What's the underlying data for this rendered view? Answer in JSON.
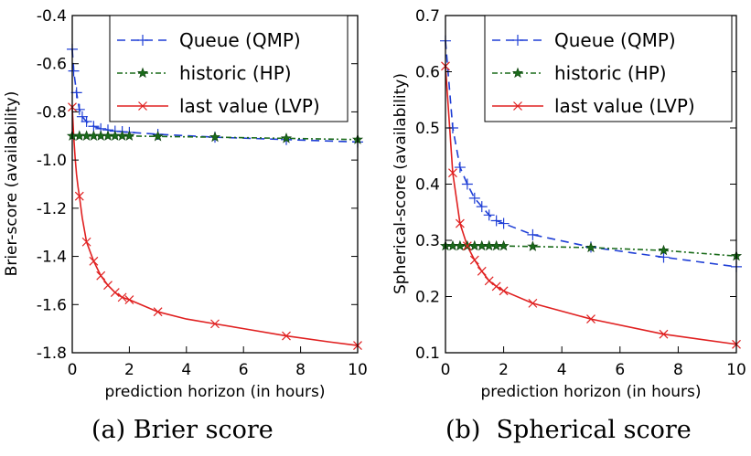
{
  "chart_data": [
    {
      "type": "line",
      "title": "",
      "caption": "(a) Brier score",
      "xlabel": "prediction horizon (in hours)",
      "ylabel": "Brier-score (availability)",
      "xlim": [
        0,
        10
      ],
      "ylim": [
        -1.8,
        -0.4
      ],
      "xticks": [
        "0",
        "2",
        "4",
        "6",
        "8",
        "10"
      ],
      "yticks": [
        "-0.4",
        "-0.6",
        "-0.8",
        "-1.0",
        "-1.2",
        "-1.4",
        "-1.6",
        "-1.8"
      ],
      "legend_position": "top-right",
      "series": [
        {
          "name": "Queue (QMP)",
          "color": "#1f3fd6",
          "style": "dashed",
          "marker": "+",
          "x": [
            0,
            0.05,
            0.15,
            0.25,
            0.35,
            0.5,
            0.75,
            1.0,
            1.25,
            1.5,
            1.75,
            2.0,
            3.0,
            5.0,
            7.5,
            10.0
          ],
          "y": [
            -0.54,
            -0.63,
            -0.72,
            -0.79,
            -0.82,
            -0.84,
            -0.86,
            -0.87,
            -0.875,
            -0.88,
            -0.882,
            -0.885,
            -0.893,
            -0.905,
            -0.915,
            -0.925
          ]
        },
        {
          "name": "historic (HP)",
          "color": "#1a6b1a",
          "style": "dashdot",
          "marker": "*",
          "x": [
            0,
            0.25,
            0.5,
            0.75,
            1.0,
            1.25,
            1.5,
            1.75,
            2.0,
            3.0,
            5.0,
            7.5,
            10.0
          ],
          "y": [
            -0.9,
            -0.9,
            -0.9,
            -0.9,
            -0.9,
            -0.9,
            -0.9,
            -0.9,
            -0.9,
            -0.902,
            -0.905,
            -0.91,
            -0.915
          ]
        },
        {
          "name": "last value (LVP)",
          "color": "#e02020",
          "style": "solid",
          "marker": "x",
          "x": [
            0,
            0.25,
            0.5,
            0.75,
            1.0,
            1.25,
            1.5,
            1.75,
            2.0,
            3.0,
            5.0,
            7.5,
            10.0
          ],
          "y": [
            -0.78,
            -1.15,
            -1.34,
            -1.42,
            -1.48,
            -1.52,
            -1.55,
            -1.57,
            -1.58,
            -1.63,
            -1.68,
            -1.73,
            -1.77
          ],
          "curve_x": [
            0,
            0.05,
            0.1,
            0.15,
            0.2,
            0.25,
            0.35,
            0.5,
            0.75,
            1.0,
            1.25,
            1.5,
            1.75,
            2.0,
            2.5,
            3.0,
            4.0,
            5.0,
            6.0,
            7.5,
            9.0,
            10.0
          ],
          "curve_y": [
            -0.78,
            -0.9,
            -0.99,
            -1.06,
            -1.11,
            -1.15,
            -1.24,
            -1.34,
            -1.42,
            -1.48,
            -1.52,
            -1.55,
            -1.57,
            -1.58,
            -1.605,
            -1.63,
            -1.66,
            -1.68,
            -1.7,
            -1.73,
            -1.755,
            -1.77
          ]
        }
      ]
    },
    {
      "type": "line",
      "title": "",
      "caption": "(b)  Spherical score",
      "xlabel": "prediction horizon (in hours)",
      "ylabel": "Spherical-score (availability)",
      "xlim": [
        0,
        10
      ],
      "ylim": [
        0.1,
        0.7
      ],
      "xticks": [
        "0",
        "2",
        "4",
        "6",
        "8",
        "10"
      ],
      "yticks": [
        "0.7",
        "0.6",
        "0.5",
        "0.4",
        "0.3",
        "0.2",
        "0.1"
      ],
      "legend_position": "top-right",
      "series": [
        {
          "name": "Queue (QMP)",
          "color": "#1f3fd6",
          "style": "dashed",
          "marker": "+",
          "x": [
            0,
            0.25,
            0.5,
            0.75,
            1.0,
            1.25,
            1.5,
            1.75,
            2.0,
            3.0,
            5.0,
            7.5,
            10.0
          ],
          "y": [
            0.655,
            0.5,
            0.43,
            0.4,
            0.375,
            0.36,
            0.345,
            0.335,
            0.33,
            0.31,
            0.288,
            0.27,
            0.253
          ]
        },
        {
          "name": "historic (HP)",
          "color": "#1a6b1a",
          "style": "dashdot",
          "marker": "*",
          "x": [
            0,
            0.25,
            0.5,
            0.75,
            1.0,
            1.25,
            1.5,
            1.75,
            2.0,
            3.0,
            5.0,
            7.5,
            10.0
          ],
          "y": [
            0.29,
            0.29,
            0.29,
            0.29,
            0.29,
            0.29,
            0.29,
            0.29,
            0.29,
            0.289,
            0.287,
            0.282,
            0.272
          ]
        },
        {
          "name": "last value (LVP)",
          "color": "#e02020",
          "style": "solid",
          "marker": "x",
          "x": [
            0,
            0.25,
            0.5,
            0.75,
            1.0,
            1.25,
            1.5,
            1.75,
            2.0,
            3.0,
            5.0,
            7.5,
            10.0
          ],
          "y": [
            0.61,
            0.42,
            0.33,
            0.29,
            0.265,
            0.245,
            0.228,
            0.218,
            0.21,
            0.188,
            0.16,
            0.133,
            0.115
          ]
        }
      ]
    }
  ]
}
